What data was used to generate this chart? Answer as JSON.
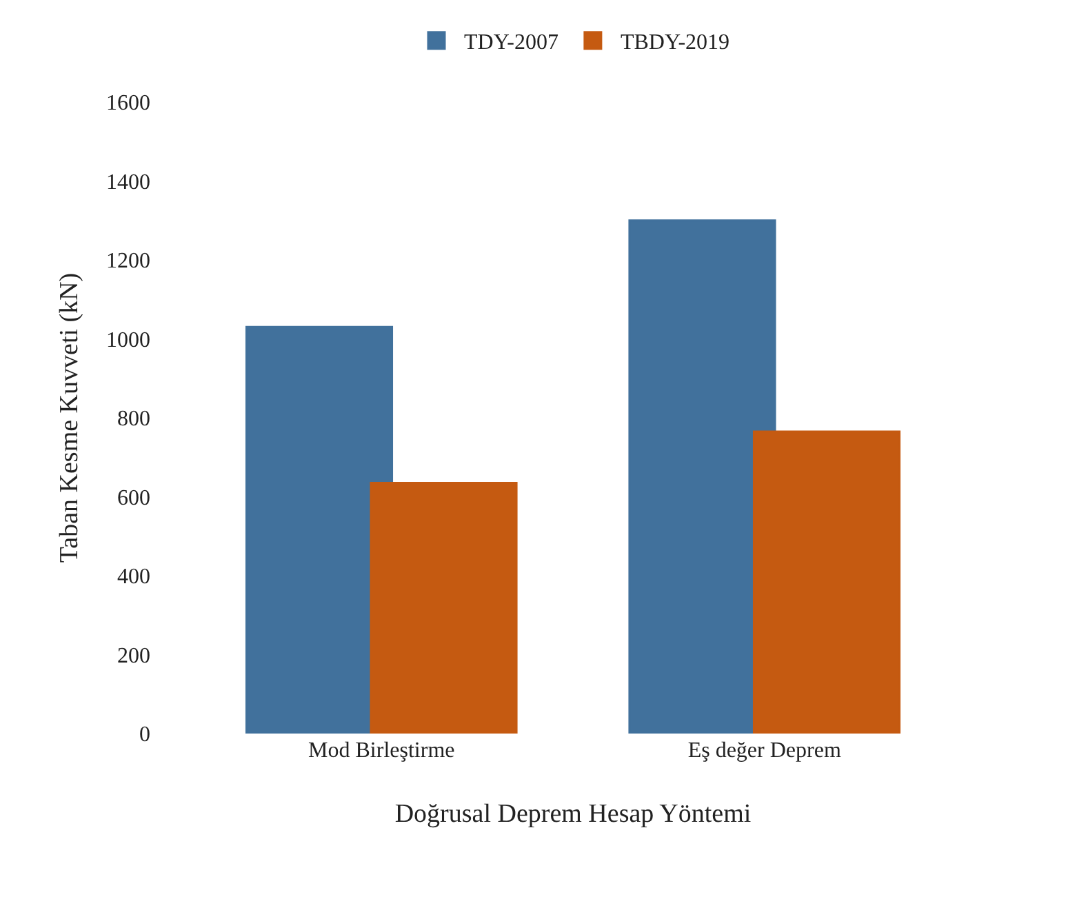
{
  "chart_data": {
    "type": "bar",
    "xlabel": "Doğrusal Deprem Hesap Yöntemi",
    "ylabel": "Taban Kesme Kuvveti (kN)",
    "categories": [
      "Mod Birleştirme",
      "Eş değer Deprem"
    ],
    "series": [
      {
        "name": "TDY-2007",
        "color": "#41719c",
        "values": [
          1030,
          1300
        ]
      },
      {
        "name": "TBDY-2019",
        "color": "#c55a11",
        "values": [
          635,
          765
        ]
      }
    ],
    "ylim": [
      0,
      1600
    ],
    "yticks": [
      0,
      200,
      400,
      600,
      800,
      1000,
      1200,
      1400,
      1600
    ],
    "grid": false,
    "legend": "top"
  }
}
